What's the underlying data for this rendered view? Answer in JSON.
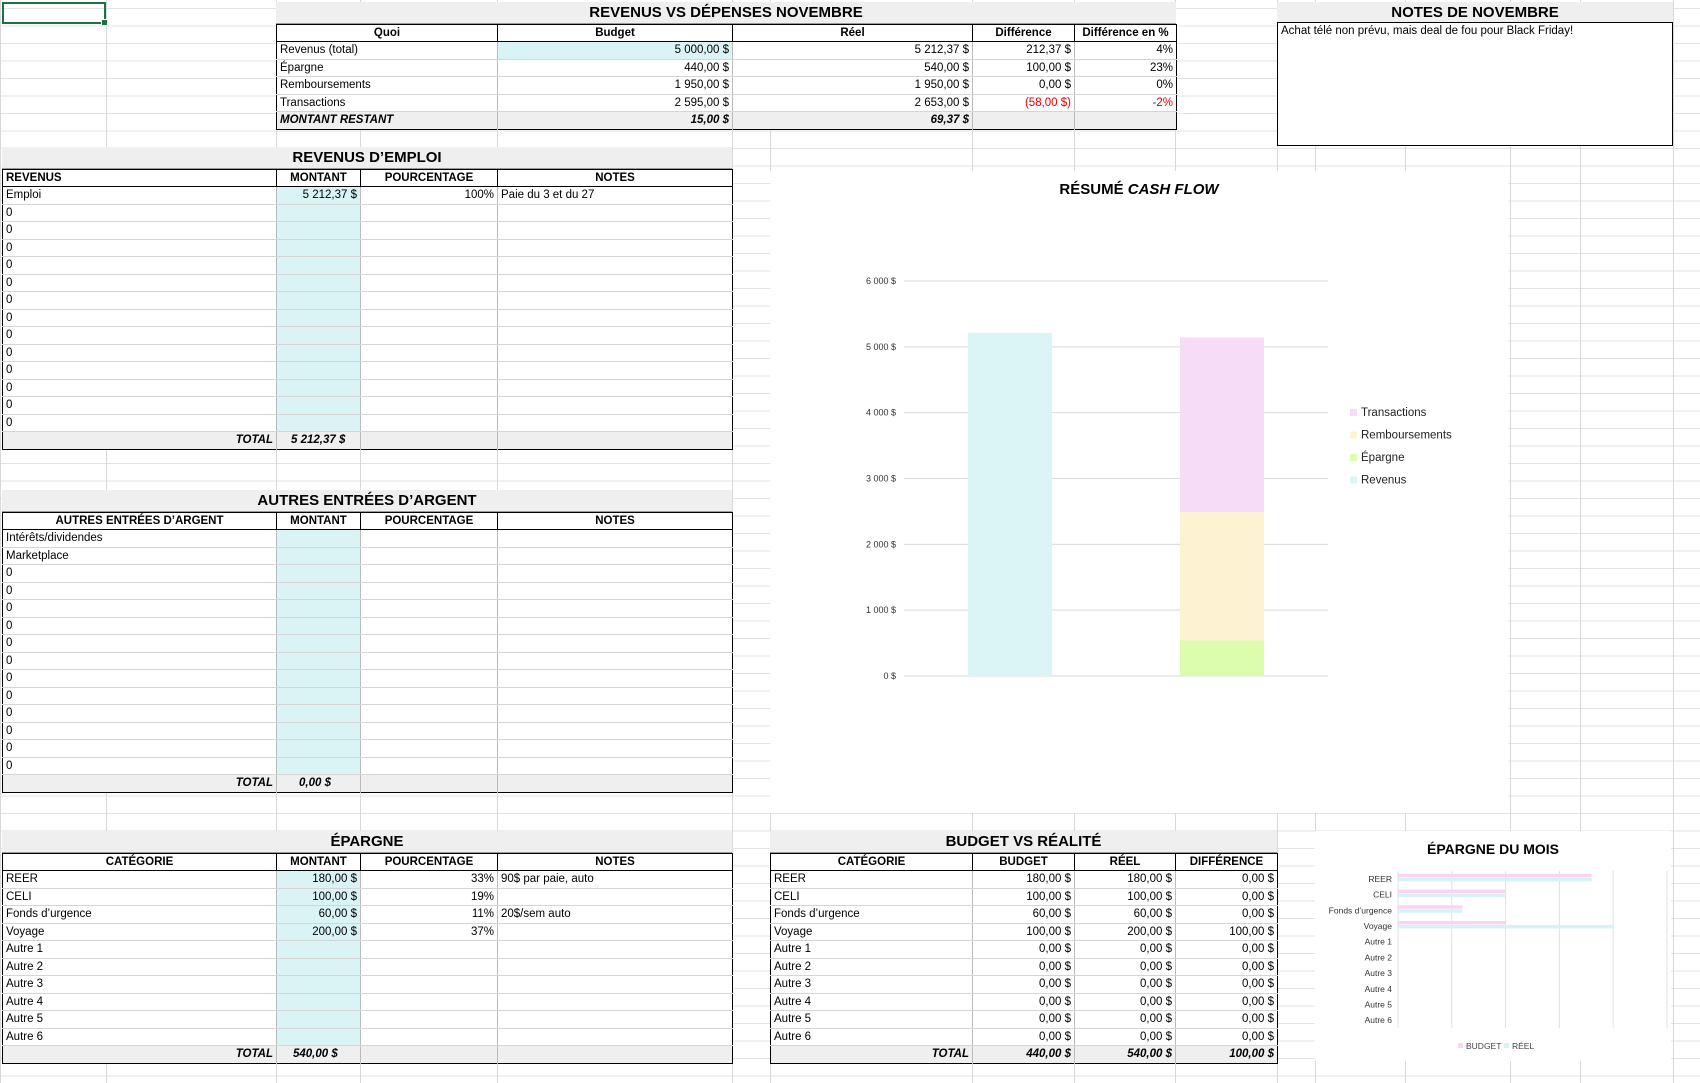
{
  "summary": {
    "title": "REVENUS VS DÉPENSES NOVEMBRE",
    "headers": [
      "Quoi",
      "Budget",
      "Réel",
      "Différence",
      "Différence en %"
    ],
    "rows": [
      {
        "quoi": "Revenus (total)",
        "budget": "5 000,00 $",
        "reel": "5 212,37 $",
        "diff": "212,37 $",
        "pct": "4%",
        "neg": false
      },
      {
        "quoi": "Épargne",
        "budget": "440,00 $",
        "reel": "540,00 $",
        "diff": "100,00 $",
        "pct": "23%",
        "neg": false
      },
      {
        "quoi": "Remboursements",
        "budget": "1 950,00 $",
        "reel": "1 950,00 $",
        "diff": "0,00 $",
        "pct": "0%",
        "neg": false
      },
      {
        "quoi": "Transactions",
        "budget": "2 595,00 $",
        "reel": "2 653,00 $",
        "diff": "(58,00 $)",
        "pct": "-2%",
        "neg": true
      }
    ],
    "remaining_label": "MONTANT RESTANT",
    "remaining_budget": "15,00 $",
    "remaining_reel": "69,37 $"
  },
  "notes": {
    "title": "NOTES DE NOVEMBRE",
    "text": "Achat télé non prévu, mais deal de fou pour Black Friday!"
  },
  "emploi": {
    "title": "REVENUS D’EMPLOI",
    "headers": [
      "REVENUS",
      "MONTANT",
      "POURCENTAGE",
      "NOTES"
    ],
    "rows": [
      [
        "Emploi",
        "5 212,37 $",
        "100%",
        "Paie du 3 et du 27"
      ],
      [
        "0",
        "",
        "",
        ""
      ],
      [
        "0",
        "",
        "",
        ""
      ],
      [
        "0",
        "",
        "",
        ""
      ],
      [
        "0",
        "",
        "",
        ""
      ],
      [
        "0",
        "",
        "",
        ""
      ],
      [
        "0",
        "",
        "",
        ""
      ],
      [
        "0",
        "",
        "",
        ""
      ],
      [
        "0",
        "",
        "",
        ""
      ],
      [
        "0",
        "",
        "",
        ""
      ],
      [
        "0",
        "",
        "",
        ""
      ],
      [
        "0",
        "",
        "",
        ""
      ],
      [
        "0",
        "",
        "",
        ""
      ],
      [
        "0",
        "",
        "",
        ""
      ]
    ],
    "total_label": "TOTAL",
    "total": "5 212,37 $"
  },
  "autres": {
    "title": "AUTRES ENTRÉES D’ARGENT",
    "headers": [
      "AUTRES ENTRÉES D’ARGENT",
      "MONTANT",
      "POURCENTAGE",
      "NOTES"
    ],
    "rows": [
      [
        "Intérêts/dividendes",
        "",
        "",
        ""
      ],
      [
        "Marketplace",
        "",
        "",
        ""
      ],
      [
        "0",
        "",
        "",
        ""
      ],
      [
        "0",
        "",
        "",
        ""
      ],
      [
        "0",
        "",
        "",
        ""
      ],
      [
        "0",
        "",
        "",
        ""
      ],
      [
        "0",
        "",
        "",
        ""
      ],
      [
        "0",
        "",
        "",
        ""
      ],
      [
        "0",
        "",
        "",
        ""
      ],
      [
        "0",
        "",
        "",
        ""
      ],
      [
        "0",
        "",
        "",
        ""
      ],
      [
        "0",
        "",
        "",
        ""
      ],
      [
        "0",
        "",
        "",
        ""
      ],
      [
        "0",
        "",
        "",
        ""
      ]
    ],
    "total_label": "TOTAL",
    "total": "0,00 $"
  },
  "epargne": {
    "title": "ÉPARGNE",
    "headers": [
      "CATÉGORIE",
      "MONTANT",
      "POURCENTAGE",
      "NOTES"
    ],
    "rows": [
      [
        "REER",
        "180,00 $",
        "33%",
        "90$ par paie, auto"
      ],
      [
        "CELI",
        "100,00 $",
        "19%",
        ""
      ],
      [
        "Fonds d’urgence",
        "60,00 $",
        "11%",
        "20$/sem auto"
      ],
      [
        "Voyage",
        "200,00 $",
        "37%",
        ""
      ],
      [
        "Autre 1",
        "",
        "",
        ""
      ],
      [
        "Autre 2",
        "",
        "",
        ""
      ],
      [
        "Autre 3",
        "",
        "",
        ""
      ],
      [
        "Autre 4",
        "",
        "",
        ""
      ],
      [
        "Autre 5",
        "",
        "",
        ""
      ],
      [
        "Autre 6",
        "",
        "",
        ""
      ]
    ],
    "total_label": "TOTAL",
    "total": "540,00 $"
  },
  "bvr": {
    "title": "BUDGET VS RÉALITÉ",
    "headers": [
      "CATÉGORIE",
      "BUDGET",
      "RÉEL",
      "DIFFÉRENCE"
    ],
    "rows": [
      [
        "REER",
        "180,00 $",
        "180,00 $",
        "0,00 $"
      ],
      [
        "CELI",
        "100,00 $",
        "100,00 $",
        "0,00 $"
      ],
      [
        "Fonds d’urgence",
        "60,00 $",
        "60,00 $",
        "0,00 $"
      ],
      [
        "Voyage",
        "100,00 $",
        "200,00 $",
        "100,00 $"
      ],
      [
        "Autre 1",
        "0,00 $",
        "0,00 $",
        "0,00 $"
      ],
      [
        "Autre 2",
        "0,00 $",
        "0,00 $",
        "0,00 $"
      ],
      [
        "Autre 3",
        "0,00 $",
        "0,00 $",
        "0,00 $"
      ],
      [
        "Autre 4",
        "0,00 $",
        "0,00 $",
        "0,00 $"
      ],
      [
        "Autre 5",
        "0,00 $",
        "0,00 $",
        "0,00 $"
      ],
      [
        "Autre 6",
        "0,00 $",
        "0,00 $",
        "0,00 $"
      ]
    ],
    "total_label": "TOTAL",
    "total_budget": "440,00 $",
    "total_reel": "540,00 $",
    "total_diff": "100,00 $"
  },
  "chart_data": [
    {
      "type": "bar",
      "stacked": true,
      "title": "RÉSUMÉ CASH FLOW",
      "title_plain": "RÉSUMÉ ",
      "title_italic": "CASH FLOW",
      "ylim": [
        0,
        6000
      ],
      "yticks": [
        "0 $",
        "1 000 $",
        "2 000 $",
        "3 000 $",
        "4 000 $",
        "5 000 $",
        "6 000 $"
      ],
      "categories": [
        "",
        ""
      ],
      "series": [
        {
          "name": "Revenus",
          "color": "#dbf4f6",
          "values": [
            5212.37,
            0
          ]
        },
        {
          "name": "Épargne",
          "color": "#dcfcae",
          "values": [
            0,
            540
          ]
        },
        {
          "name": "Remboursements",
          "color": "#fdf3d3",
          "values": [
            0,
            1950
          ]
        },
        {
          "name": "Transactions",
          "color": "#f7dcf8",
          "values": [
            0,
            2653
          ]
        }
      ],
      "legend_position": "right",
      "grid": true
    },
    {
      "type": "bar",
      "orientation": "horizontal",
      "title": "ÉPARGNE DU MOIS",
      "categories": [
        "REER",
        "CELI",
        "Fonds d’urgence",
        "Voyage",
        "Autre 1",
        "Autre 2",
        "Autre 3",
        "Autre 4",
        "Autre 5",
        "Autre 6"
      ],
      "xlim": [
        0,
        250
      ],
      "series": [
        {
          "name": "BUDGET",
          "color": "#f9d5f2",
          "values": [
            180,
            100,
            60,
            100,
            0,
            0,
            0,
            0,
            0,
            0
          ]
        },
        {
          "name": "RÉEL",
          "color": "#d6f2f5",
          "values": [
            180,
            100,
            60,
            200,
            0,
            0,
            0,
            0,
            0,
            0
          ]
        }
      ],
      "legend_position": "bottom",
      "grid": true
    }
  ]
}
